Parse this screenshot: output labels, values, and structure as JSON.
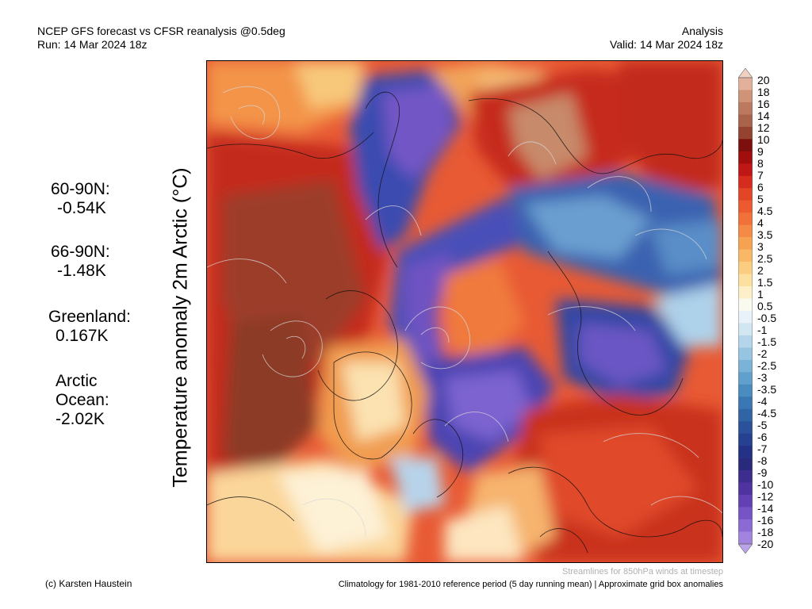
{
  "header": {
    "left_line1": "NCEP GFS forecast vs CFSR reanalysis @0.5deg",
    "left_line2": "Run: 14 Mar 2024 18z",
    "right_line1": "Analysis",
    "right_line2": "Valid: 14 Mar 2024 18z"
  },
  "map": {
    "variable_label": "Temperature anomaly 2m Arctic (°C)",
    "projection": "polar stereographic, north pole",
    "streamline_note": "Streamlines for 850hPa winds at timestep"
  },
  "stats": [
    {
      "region": "60-90N:",
      "value": "-0.54K"
    },
    {
      "region": "66-90N:",
      "value": "-1.48K"
    },
    {
      "region": "Greenland:",
      "value": "0.167K"
    },
    {
      "region_line1": "Arctic",
      "region_line2": "Ocean:",
      "value": "-2.02K"
    }
  ],
  "colorbar": {
    "labels": [
      "20",
      "18",
      "16",
      "14",
      "12",
      "10",
      "9",
      "8",
      "7",
      "6",
      "5",
      "4.5",
      "4",
      "3.5",
      "3",
      "2.5",
      "2",
      "1.5",
      "1",
      "0.5",
      "-0.5",
      "-1",
      "-1.5",
      "-2",
      "-2.5",
      "-3",
      "-3.5",
      "-4",
      "-4.5",
      "-5",
      "-6",
      "-7",
      "-8",
      "-9",
      "-10",
      "-12",
      "-14",
      "-16",
      "-18",
      "-20"
    ],
    "colors": [
      "#f0d0c0",
      "#e2b19c",
      "#cf9378",
      "#bb7a60",
      "#a9634b",
      "#93432f",
      "#7d0f0f",
      "#a00e0e",
      "#bf1616",
      "#d62c1e",
      "#e34527",
      "#ec5a30",
      "#f0713a",
      "#f48a45",
      "#f6a253",
      "#f8b866",
      "#fbcd81",
      "#fce09f",
      "#fdf0c8",
      "#fafaf0",
      "#e8f2f8",
      "#d2e6f2",
      "#b5d5ea",
      "#97c4e1",
      "#7bb2d7",
      "#619fcc",
      "#4a8cc0",
      "#3a77b3",
      "#3064a5",
      "#2a519a",
      "#25418f",
      "#233285",
      "#2a2a7c",
      "#3c2d8e",
      "#4f33a0",
      "#6241b4",
      "#7654c6",
      "#8b6ad3",
      "#a284df",
      "#bda3ea"
    ],
    "accent_warm": "#c0281c",
    "accent_cold": "#5b3fb6"
  },
  "footer": {
    "credit": "(c) Karsten Haustein",
    "climatology": "Climatology for 1981-2010 reference period (5 day running mean) | Approximate grid box anomalies"
  }
}
